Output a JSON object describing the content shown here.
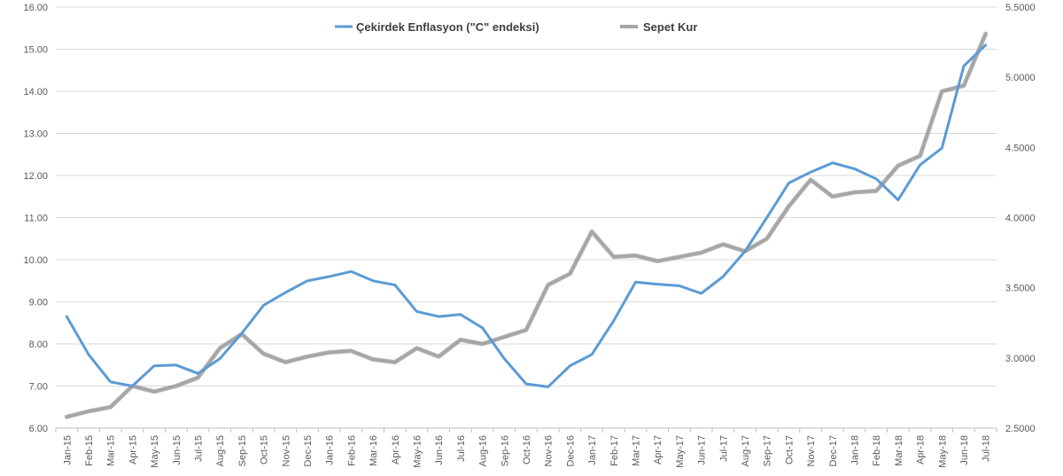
{
  "chart_data": {
    "type": "line",
    "title": "",
    "xlabel": "",
    "ylabel": "",
    "y2label": "",
    "categories": [
      "Jan-15",
      "Feb-15",
      "Mar-15",
      "Apr-15",
      "May-15",
      "Jun-15",
      "Jul-15",
      "Aug-15",
      "Sep-15",
      "Oct-15",
      "Nov-15",
      "Dec-15",
      "Jan-16",
      "Feb-16",
      "Mar-16",
      "Apr-16",
      "May-16",
      "Jun-16",
      "Jul-16",
      "Aug-16",
      "Sep-16",
      "Oct-16",
      "Nov-16",
      "Dec-16",
      "Jan-17",
      "Feb-17",
      "Mar-17",
      "Apr-17",
      "May-17",
      "Jun-17",
      "Jul-17",
      "Aug-17",
      "Sep-17",
      "Oct-17",
      "Nov-17",
      "Dec-17",
      "Jan-18",
      "Feb-18",
      "Mar-18",
      "Apr-18",
      "May-18",
      "Jun-18",
      "Jul-18"
    ],
    "series": [
      {
        "name": "Çekirdek Enflasyon (\"C\" endeksi)",
        "axis": "left",
        "color": "#5b9bd5",
        "values": [
          8.65,
          7.75,
          7.1,
          7.0,
          7.48,
          7.5,
          7.3,
          7.65,
          8.25,
          8.92,
          9.22,
          9.5,
          9.6,
          9.72,
          9.5,
          9.4,
          8.77,
          8.65,
          8.7,
          8.38,
          7.65,
          7.05,
          6.98,
          7.48,
          7.75,
          8.55,
          9.47,
          9.42,
          9.38,
          9.2,
          9.6,
          10.2,
          11.0,
          11.82,
          12.08,
          12.3,
          12.16,
          11.92,
          11.42,
          12.25,
          12.65,
          14.6,
          15.1
        ]
      },
      {
        "name": "Sepet Kur",
        "axis": "right",
        "color": "#a5a5a5",
        "values": [
          2.58,
          2.62,
          2.65,
          2.8,
          2.76,
          2.8,
          2.86,
          3.07,
          3.17,
          3.03,
          2.97,
          3.01,
          3.04,
          3.05,
          2.99,
          2.97,
          3.07,
          3.01,
          3.13,
          3.1,
          3.15,
          3.2,
          3.52,
          3.6,
          3.9,
          3.72,
          3.73,
          3.69,
          3.72,
          3.75,
          3.81,
          3.76,
          3.85,
          4.08,
          4.27,
          4.15,
          4.18,
          4.19,
          4.37,
          4.44,
          4.9,
          4.94,
          5.31
        ]
      }
    ],
    "y_left": {
      "ylim": [
        6.0,
        16.0
      ],
      "ticks": [
        "6.00",
        "7.00",
        "8.00",
        "9.00",
        "10.00",
        "11.00",
        "12.00",
        "13.00",
        "14.00",
        "15.00",
        "16.00"
      ]
    },
    "y_right": {
      "ylim": [
        2.5,
        5.5
      ],
      "ticks": [
        "2.5000",
        "3.0000",
        "3.5000",
        "4.0000",
        "4.5000",
        "5.0000",
        "5.5000"
      ]
    },
    "grid": true,
    "legend_position": "top"
  }
}
